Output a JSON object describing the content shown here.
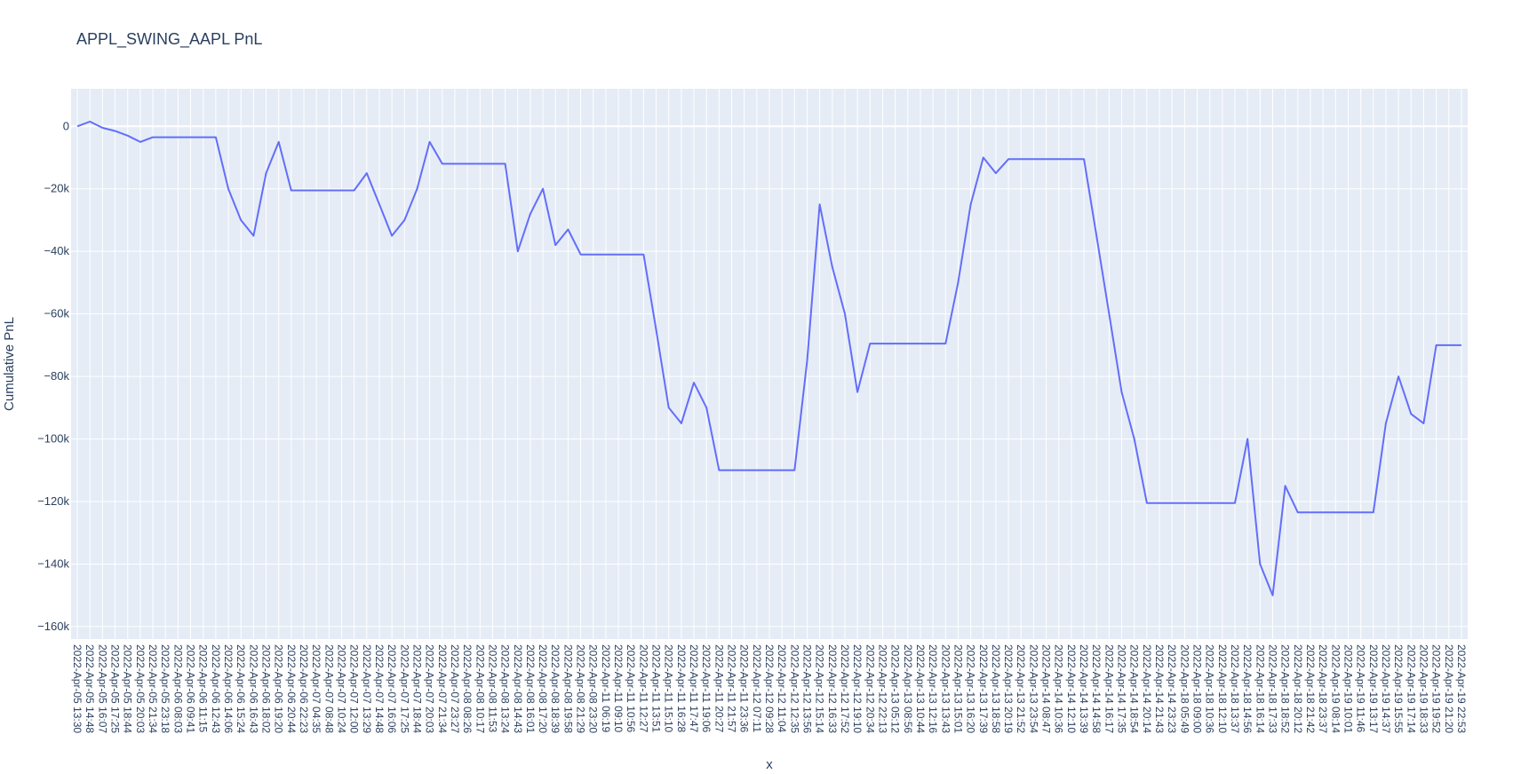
{
  "chart_data": {
    "type": "line",
    "title": "APPL_SWING_AAPL PnL",
    "xlabel": "x",
    "ylabel": "Cumulative PnL",
    "ylim": [
      -164000,
      12000
    ],
    "y_tick_values": [
      0,
      -20000,
      -40000,
      -60000,
      -80000,
      -100000,
      -120000,
      -140000,
      -160000
    ],
    "y_tick_labels": [
      "0",
      "−20k",
      "−40k",
      "−60k",
      "−80k",
      "−100k",
      "−120k",
      "−140k",
      "−160k"
    ],
    "x_categories": [
      "2022-Apr-05 13:30",
      "2022-Apr-05 14:48",
      "2022-Apr-05 16:07",
      "2022-Apr-05 17:25",
      "2022-Apr-05 18:44",
      "2022-Apr-05 20:03",
      "2022-Apr-05 21:34",
      "2022-Apr-05 23:18",
      "2022-Apr-06 08:03",
      "2022-Apr-06 09:41",
      "2022-Apr-06 11:15",
      "2022-Apr-06 12:43",
      "2022-Apr-06 14:06",
      "2022-Apr-06 15:24",
      "2022-Apr-06 16:43",
      "2022-Apr-06 18:02",
      "2022-Apr-06 19:20",
      "2022-Apr-06 20:44",
      "2022-Apr-06 22:23",
      "2022-Apr-07 04:35",
      "2022-Apr-07 08:48",
      "2022-Apr-07 10:24",
      "2022-Apr-07 12:00",
      "2022-Apr-07 13:29",
      "2022-Apr-07 14:48",
      "2022-Apr-07 16:06",
      "2022-Apr-07 17:25",
      "2022-Apr-07 18:44",
      "2022-Apr-07 20:03",
      "2022-Apr-07 21:34",
      "2022-Apr-07 23:27",
      "2022-Apr-08 08:26",
      "2022-Apr-08 10:17",
      "2022-Apr-08 11:53",
      "2022-Apr-08 13:24",
      "2022-Apr-08 14:43",
      "2022-Apr-08 16:01",
      "2022-Apr-08 17:20",
      "2022-Apr-08 18:39",
      "2022-Apr-08 19:58",
      "2022-Apr-08 21:29",
      "2022-Apr-08 23:20",
      "2022-Apr-11 06:19",
      "2022-Apr-11 09:10",
      "2022-Apr-11 10:56",
      "2022-Apr-11 12:27",
      "2022-Apr-11 13:51",
      "2022-Apr-11 15:10",
      "2022-Apr-11 16:28",
      "2022-Apr-11 17:47",
      "2022-Apr-11 19:06",
      "2022-Apr-11 20:27",
      "2022-Apr-11 21:57",
      "2022-Apr-11 23:36",
      "2022-Apr-12 07:11",
      "2022-Apr-12 09:28",
      "2022-Apr-12 11:04",
      "2022-Apr-12 12:35",
      "2022-Apr-12 13:56",
      "2022-Apr-12 15:14",
      "2022-Apr-12 16:33",
      "2022-Apr-12 17:52",
      "2022-Apr-12 19:10",
      "2022-Apr-12 20:34",
      "2022-Apr-12 22:13",
      "2022-Apr-13 05:12",
      "2022-Apr-13 08:56",
      "2022-Apr-13 10:44",
      "2022-Apr-13 12:16",
      "2022-Apr-13 13:43",
      "2022-Apr-13 15:01",
      "2022-Apr-13 16:20",
      "2022-Apr-13 17:39",
      "2022-Apr-13 18:58",
      "2022-Apr-13 20:19",
      "2022-Apr-13 21:52",
      "2022-Apr-13 23:54",
      "2022-Apr-14 08:47",
      "2022-Apr-14 10:36",
      "2022-Apr-14 12:10",
      "2022-Apr-14 13:39",
      "2022-Apr-14 14:58",
      "2022-Apr-14 16:17",
      "2022-Apr-14 17:35",
      "2022-Apr-14 18:54",
      "2022-Apr-14 20:14",
      "2022-Apr-14 21:43",
      "2022-Apr-14 23:23",
      "2022-Apr-18 05:49",
      "2022-Apr-18 09:00",
      "2022-Apr-18 10:36",
      "2022-Apr-18 12:10",
      "2022-Apr-18 13:37",
      "2022-Apr-18 14:56",
      "2022-Apr-18 16:14",
      "2022-Apr-18 17:33",
      "2022-Apr-18 18:52",
      "2022-Apr-18 20:12",
      "2022-Apr-18 21:42",
      "2022-Apr-18 23:37",
      "2022-Apr-19 08:14",
      "2022-Apr-19 10:01",
      "2022-Apr-19 11:46",
      "2022-Apr-19 13:17",
      "2022-Apr-19 14:37",
      "2022-Apr-19 15:55",
      "2022-Apr-19 17:14",
      "2022-Apr-19 18:33",
      "2022-Apr-19 19:52",
      "2022-Apr-19 21:20",
      "2022-Apr-19 22:53"
    ],
    "series": [
      {
        "color": "#636efa",
        "points": [
          [
            "2022-Apr-05 13:30",
            0
          ],
          [
            "2022-Apr-05 14:48",
            1500
          ],
          [
            "2022-Apr-05 16:07",
            -500
          ],
          [
            "2022-Apr-05 17:25",
            -1500
          ],
          [
            "2022-Apr-05 18:44",
            -3000
          ],
          [
            "2022-Apr-05 20:03",
            -5000
          ],
          [
            "2022-Apr-05 21:34",
            -3500
          ],
          [
            "2022-Apr-05 23:18",
            -3500
          ],
          [
            "2022-Apr-06 12:43",
            -3500
          ],
          [
            "2022-Apr-06 14:06",
            -20000
          ],
          [
            "2022-Apr-06 15:24",
            -30000
          ],
          [
            "2022-Apr-06 16:43",
            -35000
          ],
          [
            "2022-Apr-06 18:02",
            -15000
          ],
          [
            "2022-Apr-06 19:20",
            -5000
          ],
          [
            "2022-Apr-06 20:44",
            -20500
          ],
          [
            "2022-Apr-07 12:00",
            -20500
          ],
          [
            "2022-Apr-07 13:29",
            -15000
          ],
          [
            "2022-Apr-07 14:48",
            -25000
          ],
          [
            "2022-Apr-07 16:06",
            -35000
          ],
          [
            "2022-Apr-07 17:25",
            -30000
          ],
          [
            "2022-Apr-07 18:44",
            -20000
          ],
          [
            "2022-Apr-07 20:03",
            -5000
          ],
          [
            "2022-Apr-07 21:34",
            -12000
          ],
          [
            "2022-Apr-08 13:24",
            -12000
          ],
          [
            "2022-Apr-08 14:43",
            -40000
          ],
          [
            "2022-Apr-08 16:01",
            -28000
          ],
          [
            "2022-Apr-08 17:20",
            -20000
          ],
          [
            "2022-Apr-08 18:39",
            -38000
          ],
          [
            "2022-Apr-08 19:58",
            -33000
          ],
          [
            "2022-Apr-08 21:29",
            -41000
          ],
          [
            "2022-Apr-11 12:27",
            -41000
          ],
          [
            "2022-Apr-11 13:51",
            -65000
          ],
          [
            "2022-Apr-11 15:10",
            -90000
          ],
          [
            "2022-Apr-11 16:28",
            -95000
          ],
          [
            "2022-Apr-11 17:47",
            -82000
          ],
          [
            "2022-Apr-11 19:06",
            -90000
          ],
          [
            "2022-Apr-11 20:27",
            -110000
          ],
          [
            "2022-Apr-12 12:35",
            -110000
          ],
          [
            "2022-Apr-12 13:56",
            -75000
          ],
          [
            "2022-Apr-12 15:14",
            -25000
          ],
          [
            "2022-Apr-12 16:33",
            -45000
          ],
          [
            "2022-Apr-12 17:52",
            -60000
          ],
          [
            "2022-Apr-12 19:10",
            -85000
          ],
          [
            "2022-Apr-12 20:34",
            -69500
          ],
          [
            "2022-Apr-13 13:43",
            -69500
          ],
          [
            "2022-Apr-13 15:01",
            -50000
          ],
          [
            "2022-Apr-13 16:20",
            -25000
          ],
          [
            "2022-Apr-13 17:39",
            -10000
          ],
          [
            "2022-Apr-13 18:58",
            -15000
          ],
          [
            "2022-Apr-13 20:19",
            -10500
          ],
          [
            "2022-Apr-14 13:39",
            -10500
          ],
          [
            "2022-Apr-14 14:58",
            -35000
          ],
          [
            "2022-Apr-14 16:17",
            -60000
          ],
          [
            "2022-Apr-14 17:35",
            -85000
          ],
          [
            "2022-Apr-14 18:54",
            -100000
          ],
          [
            "2022-Apr-14 20:14",
            -120500
          ],
          [
            "2022-Apr-18 13:37",
            -120500
          ],
          [
            "2022-Apr-18 14:56",
            -100000
          ],
          [
            "2022-Apr-18 16:14",
            -140000
          ],
          [
            "2022-Apr-18 17:33",
            -150000
          ],
          [
            "2022-Apr-18 18:52",
            -115000
          ],
          [
            "2022-Apr-18 20:12",
            -123500
          ],
          [
            "2022-Apr-19 13:17",
            -123500
          ],
          [
            "2022-Apr-19 14:37",
            -95000
          ],
          [
            "2022-Apr-19 15:55",
            -80000
          ],
          [
            "2022-Apr-19 17:14",
            -92000
          ],
          [
            "2022-Apr-19 18:33",
            -95000
          ],
          [
            "2022-Apr-19 19:52",
            -70000
          ],
          [
            "2022-Apr-19 21:20",
            -70000
          ],
          [
            "2022-Apr-19 22:53",
            -70000
          ]
        ]
      }
    ]
  }
}
